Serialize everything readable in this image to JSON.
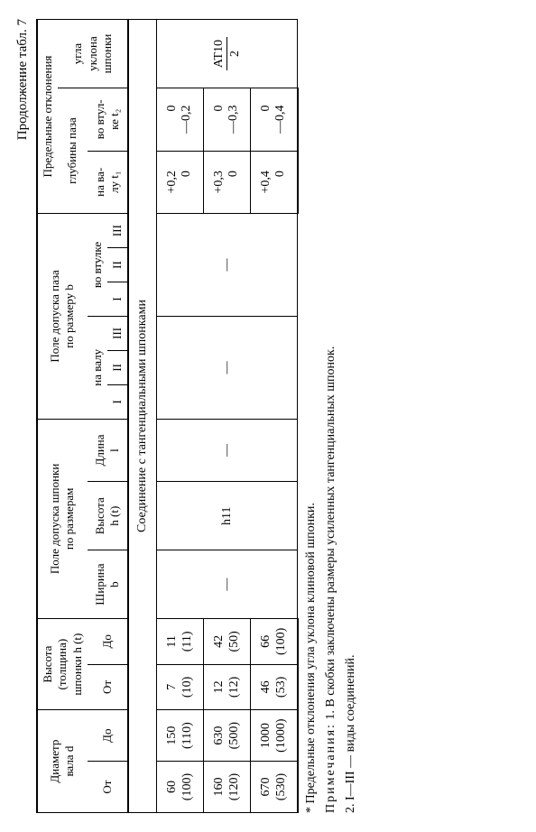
{
  "caption": "Продолжение табл. 7",
  "header": {
    "diam": "Диаметр\nвала d",
    "ot": "От",
    "do": "До",
    "height": "Высота\n(толщина)\nшпонки h (t)",
    "keyTol": "Поле допуска шпонки\nпо размерам",
    "width": "Ширина\nb",
    "h": "Высота\nh (t)",
    "len": "Длина\nl",
    "slotTol": "Поле допуска паза\nпо размеру b",
    "onShaft": "на валу",
    "inHub": "во втулке",
    "i": "I",
    "ii": "II",
    "iii": "III",
    "limit": "Предельные отклонения",
    "depth": "глубины паза",
    "onShaftT1": "на ва-\nлу t₁",
    "inHubT2": "во втул-\nке t₂",
    "angle": "угла\nуклона\nшпонки"
  },
  "section": "Соединение с тангенциальными шпонками",
  "angleTol": {
    "num": "AT10",
    "den": "2"
  },
  "rows": [
    {
      "d_from": "60\n(100)",
      "d_to": "150\n(110)",
      "h_from": "7\n(10)",
      "h_to": "11\n(11)",
      "b": "—",
      "h": "h11",
      "l": "—",
      "s1": "—",
      "s2": "",
      "s3": "",
      "h1": "—",
      "h2": "",
      "h3": "",
      "t1u": "+0,2",
      "t1l": "0",
      "t2u": "0",
      "t2l": "—0,2"
    },
    {
      "d_from": "160\n(120)",
      "d_to": "630\n(500)",
      "h_from": "12\n(12)",
      "h_to": "42\n(50)",
      "b": "",
      "h": "",
      "l": "",
      "s1": "",
      "s2": "",
      "s3": "",
      "h1": "",
      "h2": "",
      "h3": "",
      "t1u": "+0,3",
      "t1l": "0",
      "t2u": "0",
      "t2l": "—0,3"
    },
    {
      "d_from": "670\n(530)",
      "d_to": "1000\n(1000)",
      "h_from": "46\n(53)",
      "h_to": "66\n(100)",
      "b": "",
      "h": "",
      "l": "",
      "s1": "",
      "s2": "",
      "s3": "",
      "h1": "",
      "h2": "",
      "h3": "",
      "t1u": "+0,4",
      "t1l": "0",
      "t2u": "0",
      "t2l": "—0,4"
    }
  ],
  "footnote": "* Предельные отклонения угла уклона клиновой шпонки.",
  "notes1": "Примечания: 1. В скобки заключены размеры усиленных тангенциальных шпонок.",
  "notes2": "2. I—III — виды соединений."
}
